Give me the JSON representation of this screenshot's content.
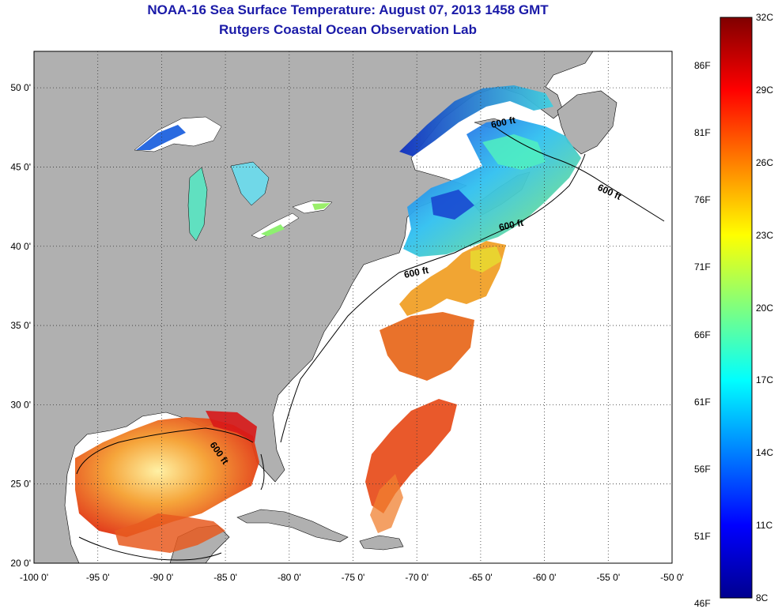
{
  "title": "NOAA-16 Sea Surface Temperature:  August 07, 2013 1458 GMT",
  "subtitle": "Rutgers Coastal Ocean Observation Lab",
  "colors": {
    "land": "#b0b0b0",
    "ocean_nodata": "#ffffff",
    "title": "#1a1aa8",
    "contour": "#000000"
  },
  "map": {
    "lon_range": [
      -100,
      -50
    ],
    "lat_range": [
      20,
      52.3
    ],
    "lon_ticks": [
      "-100 0'",
      "-95 0'",
      "-90 0'",
      "-85 0'",
      "-80 0'",
      "-75 0'",
      "-70 0'",
      "-65 0'",
      "-60 0'",
      "-55 0'",
      "-50 0'"
    ],
    "lat_ticks": [
      "20 0'",
      "25 0'",
      "30 0'",
      "35 0'",
      "40 0'",
      "45 0'",
      "50 0'"
    ],
    "grid": "dotted",
    "contour_label": "600 ft"
  },
  "colorbar": {
    "celsius_labels": [
      "32C",
      "29C",
      "26C",
      "23C",
      "20C",
      "17C",
      "14C",
      "11C",
      "8C"
    ],
    "fahrenheit_labels": [
      "86F",
      "81F",
      "76F",
      "71F",
      "66F",
      "61F",
      "56F",
      "51F",
      "46F"
    ],
    "range_c": [
      8,
      32
    ]
  }
}
